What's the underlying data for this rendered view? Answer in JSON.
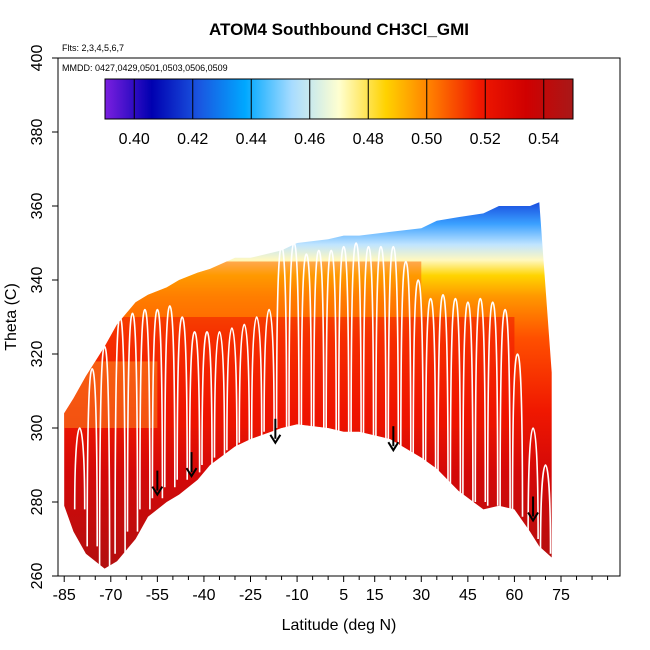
{
  "chart_data": {
    "type": "heatmap",
    "title": "ATOM4 Southbound CH3Cl_GMI",
    "flights_note": "Flts: 2,3,4,5,6,7",
    "dates_note": "MMDD: 0427,0429,0501,0503,0506,0509",
    "xlabel": "Latitude (deg N)",
    "ylabel": "Theta (C)",
    "xlim": [
      -87,
      94
    ],
    "ylim": [
      260,
      400
    ],
    "x_ticks": [
      -85,
      -70,
      -55,
      -40,
      -25,
      -10,
      5,
      15,
      30,
      45,
      60,
      75
    ],
    "x_tick_labels": [
      "-85",
      "-70",
      "-55",
      "-40",
      "-25",
      "-10",
      "5",
      "15",
      "30",
      "45",
      "60",
      "75"
    ],
    "y_ticks": [
      260,
      280,
      300,
      320,
      340,
      360,
      380,
      400
    ],
    "y_tick_labels": [
      "260",
      "280",
      "300",
      "320",
      "340",
      "360",
      "380",
      "400"
    ],
    "colorbar": {
      "range": [
        0.39,
        0.55
      ],
      "ticks": [
        0.4,
        0.42,
        0.44,
        0.46,
        0.48,
        0.5,
        0.52,
        0.54
      ],
      "tick_labels": [
        "0.40",
        "0.42",
        "0.44",
        "0.46",
        "0.48",
        "0.50",
        "0.52",
        "0.54"
      ],
      "colors": [
        "#7b1fe0",
        "#0000b0",
        "#1a55e0",
        "#00a8ff",
        "#a8dcff",
        "#ffffd0",
        "#ffd200",
        "#ff7a00",
        "#f01800",
        "#d00000",
        "#a81818"
      ]
    },
    "domain_boundary": {
      "lat": [
        -85,
        -82,
        -78,
        -72,
        -68,
        -62,
        -58,
        -52,
        -48,
        -42,
        -38,
        -30,
        -25,
        -15,
        -10,
        0,
        5,
        10,
        20,
        30,
        35,
        42,
        50,
        55,
        60,
        65,
        68,
        72
      ],
      "theta_top": [
        304,
        308,
        314,
        322,
        328,
        334,
        336,
        338,
        340,
        342,
        343,
        346,
        346,
        348,
        350,
        351,
        352,
        352,
        353,
        354,
        356,
        357,
        358,
        360,
        360,
        360,
        361,
        315
      ],
      "theta_bottom": [
        279,
        272,
        266,
        262,
        264,
        270,
        276,
        280,
        282,
        286,
        290,
        295,
        297,
        300,
        301,
        300,
        299,
        299,
        297,
        292,
        289,
        283,
        278,
        279,
        278,
        272,
        268,
        265
      ]
    },
    "vertical_profiles": {
      "lat": [
        -80,
        -76,
        -72,
        -67,
        -63,
        -59,
        -55,
        -51,
        -47,
        -43,
        -39,
        -35,
        -31,
        -27,
        -23,
        -19,
        -15,
        -11,
        -7,
        -3,
        1,
        5,
        9,
        13,
        17,
        21,
        25,
        29,
        33,
        37,
        41,
        45,
        49,
        53,
        57,
        61,
        66,
        70
      ],
      "theta_max": [
        300,
        316,
        322,
        330,
        331,
        332,
        332,
        333,
        330,
        326,
        326,
        326,
        327,
        328,
        330,
        332,
        349,
        350,
        347,
        348,
        348,
        349,
        350,
        349,
        349,
        349,
        345,
        340,
        335,
        336,
        335,
        334,
        335,
        334,
        332,
        320,
        300,
        290
      ],
      "theta_min": [
        278,
        268,
        262,
        266,
        272,
        278,
        281,
        284,
        286,
        288,
        290,
        292,
        294,
        296,
        297,
        299,
        300,
        300,
        300,
        300,
        299,
        298,
        297,
        296,
        295,
        292,
        290,
        287,
        285,
        283,
        281,
        279,
        280,
        279,
        278,
        276,
        270,
        266
      ]
    },
    "sample_arrows": {
      "lat": [
        -55,
        -44,
        -17,
        21,
        66
      ],
      "theta": [
        282,
        287,
        296,
        294,
        275
      ]
    }
  }
}
